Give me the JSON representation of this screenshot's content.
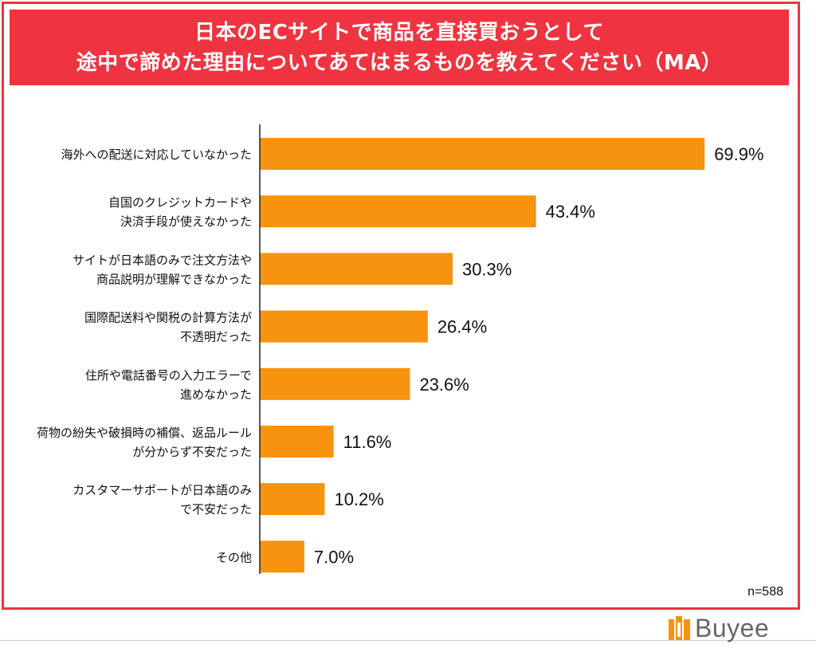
{
  "chart_data": {
    "type": "bar",
    "orientation": "horizontal",
    "title_lines": [
      "日本のECサイトで商品を直接買おうとして",
      "途中で諦めた理由についてあてはまるものを教えてください（MA）"
    ],
    "categories": [
      [
        "海外への配送に対応していなかった"
      ],
      [
        "自国のクレジットカードや",
        "決済手段が使えなかった"
      ],
      [
        "サイトが日本語のみで注文方法や",
        "商品説明が理解できなかった"
      ],
      [
        "国際配送料や関税の計算方法が",
        "不透明だった"
      ],
      [
        "住所や電話番号の入力エラーで",
        "進めなかった"
      ],
      [
        "荷物の紛失や破損時の補償、返品ルール",
        "が分からず不安だった"
      ],
      [
        "カスタマーサポートが日本語のみ",
        "で不安だった"
      ],
      [
        "その他"
      ]
    ],
    "values": [
      69.9,
      43.4,
      30.3,
      26.4,
      23.6,
      11.6,
      10.2,
      7.0
    ],
    "value_labels": [
      "69.9%",
      "43.4%",
      "30.3%",
      "26.4%",
      "23.6%",
      "11.6%",
      "10.2%",
      "7.0%"
    ],
    "xlim": [
      0,
      70
    ],
    "bar_color": "#f7930f",
    "sample_size": "n=588"
  },
  "colors": {
    "accent": "#ef3340",
    "bar": "#f7930f",
    "logo_icon": "#f7930f"
  },
  "brand": {
    "logo_text": "Buyee",
    "logo_icon": "building-blocks-icon"
  }
}
